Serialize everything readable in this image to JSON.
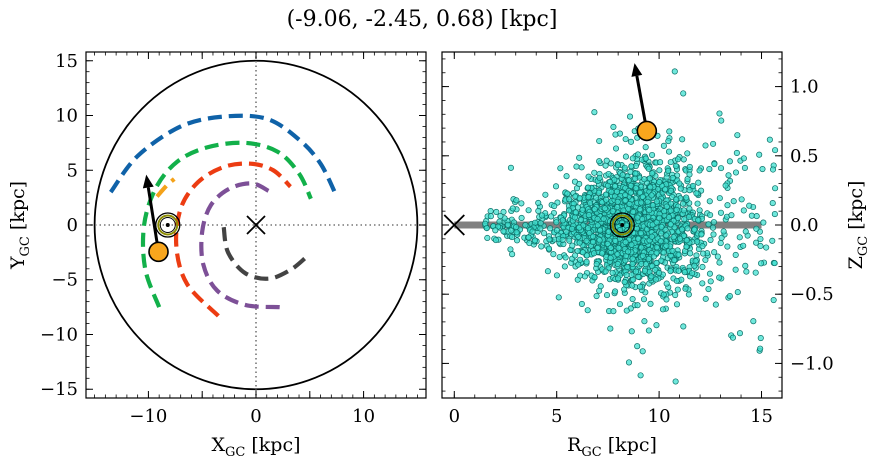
{
  "title": "(-9.06, -2.45, 0.68) [kpc]",
  "colors": {
    "arm_blue": "#0f62a8",
    "arm_green": "#12b04a",
    "arm_orange": "#f4a21a",
    "arm_red": "#ec3c12",
    "arm_purple": "#7d5097",
    "arm_gray": "#434343",
    "star": "#f8a61d",
    "cloud_fill": "#40e0d0",
    "cloud_edge": "#0b6f67",
    "sun_ring": "#8c8c00",
    "plane": "#808080"
  },
  "chart_data": [
    {
      "type": "line",
      "xlabel": "X",
      "xlabel_sub": "GC",
      "xlabel_unit": " [kpc]",
      "ylabel": "Y",
      "ylabel_sub": "GC",
      "ylabel_unit": " [kpc]",
      "xlim": [
        -15.8,
        15.8
      ],
      "ylim": [
        -15.8,
        15.8
      ],
      "xticks": [
        -10,
        -5,
        0,
        5,
        10
      ],
      "yticks": [
        -15,
        -10,
        -5,
        0,
        5,
        10,
        15
      ],
      "xtick_labels": [
        "−10",
        "",
        "0",
        "",
        "10"
      ],
      "ytick_labels": [
        "−15",
        "−10",
        "−5",
        "0",
        "5",
        "10",
        "15"
      ],
      "grid": false,
      "boundary_circle_radius": 15,
      "galactic_center": [
        0,
        0
      ],
      "sun": [
        -8.2,
        0
      ],
      "object": [
        -9.06,
        -2.45
      ],
      "velocity_arrow_tip": [
        -10.2,
        4.6
      ],
      "series": [
        {
          "color": "arm_blue",
          "points": [
            [
              -13.5,
              3
            ],
            [
              -11,
              6.3
            ],
            [
              -7,
              9
            ],
            [
              -3,
              9.9
            ],
            [
              1,
              9.7
            ],
            [
              4,
              7.8
            ],
            [
              6,
              5.6
            ],
            [
              7.5,
              2.6
            ]
          ]
        },
        {
          "color": "arm_green",
          "points": [
            [
              -9,
              -7.5
            ],
            [
              -10.3,
              -4
            ],
            [
              -10.4,
              0
            ],
            [
              -9.3,
              3.4
            ],
            [
              -7.3,
              5.8
            ],
            [
              -4.5,
              7.1
            ],
            [
              -1,
              7.5
            ],
            [
              2,
              6.7
            ],
            [
              4,
              4.7
            ],
            [
              5.1,
              2.4
            ]
          ]
        },
        {
          "color": "arm_orange",
          "points": [
            [
              -9.2,
              2.6
            ],
            [
              -8.3,
              3.6
            ],
            [
              -7.6,
              4.2
            ]
          ]
        },
        {
          "color": "arm_red",
          "points": [
            [
              -3.5,
              -8.3
            ],
            [
              -6.4,
              -5.4
            ],
            [
              -7.4,
              -2
            ],
            [
              -7,
              1.5
            ],
            [
              -5.4,
              3.9
            ],
            [
              -3,
              5.3
            ],
            [
              -0.5,
              5.6
            ],
            [
              1.6,
              5
            ],
            [
              3.2,
              3.5
            ]
          ]
        },
        {
          "color": "arm_purple",
          "points": [
            [
              2.2,
              -7.5
            ],
            [
              -1,
              -7.3
            ],
            [
              -3.6,
              -6
            ],
            [
              -4.9,
              -3.6
            ],
            [
              -5,
              -0.6
            ],
            [
              -4.2,
              1.8
            ],
            [
              -2.5,
              3.3
            ],
            [
              -0.4,
              3.8
            ],
            [
              1.2,
              3.1
            ]
          ]
        },
        {
          "color": "arm_gray",
          "points": [
            [
              -3,
              -0.2
            ],
            [
              -2.6,
              -2.5
            ],
            [
              -1,
              -4.4
            ],
            [
              1.2,
              -4.9
            ],
            [
              3.2,
              -4.1
            ],
            [
              4.6,
              -3
            ]
          ]
        }
      ]
    },
    {
      "type": "scatter",
      "xlabel": "R",
      "xlabel_sub": "GC",
      "xlabel_unit": " [kpc]",
      "ylabel": "Z",
      "ylabel_sub": "GC",
      "ylabel_unit": " [kpc]",
      "xlim": [
        -0.6,
        16
      ],
      "ylim": [
        -1.25,
        1.25
      ],
      "xticks": [
        0,
        5,
        10,
        15
      ],
      "yticks": [
        -1.0,
        -0.5,
        0.0,
        0.5,
        1.0
      ],
      "xtick_labels": [
        "0",
        "5",
        "10",
        "15"
      ],
      "ytick_labels": [
        "−1.0",
        "−0.5",
        "0.0",
        "0.5",
        "1.0"
      ],
      "grid": false,
      "galactic_center": [
        0,
        0
      ],
      "sun": [
        8.2,
        0
      ],
      "object": [
        9.4,
        0.68
      ],
      "velocity_arrow_tip": [
        8.8,
        1.17
      ],
      "plane_range": [
        0,
        15
      ],
      "cloud": {
        "count": 2200,
        "r_range": [
          1.5,
          15.8
        ],
        "r_peak": 8.5,
        "z_scale_min": 0.06,
        "z_scale_max": 0.6
      }
    }
  ]
}
